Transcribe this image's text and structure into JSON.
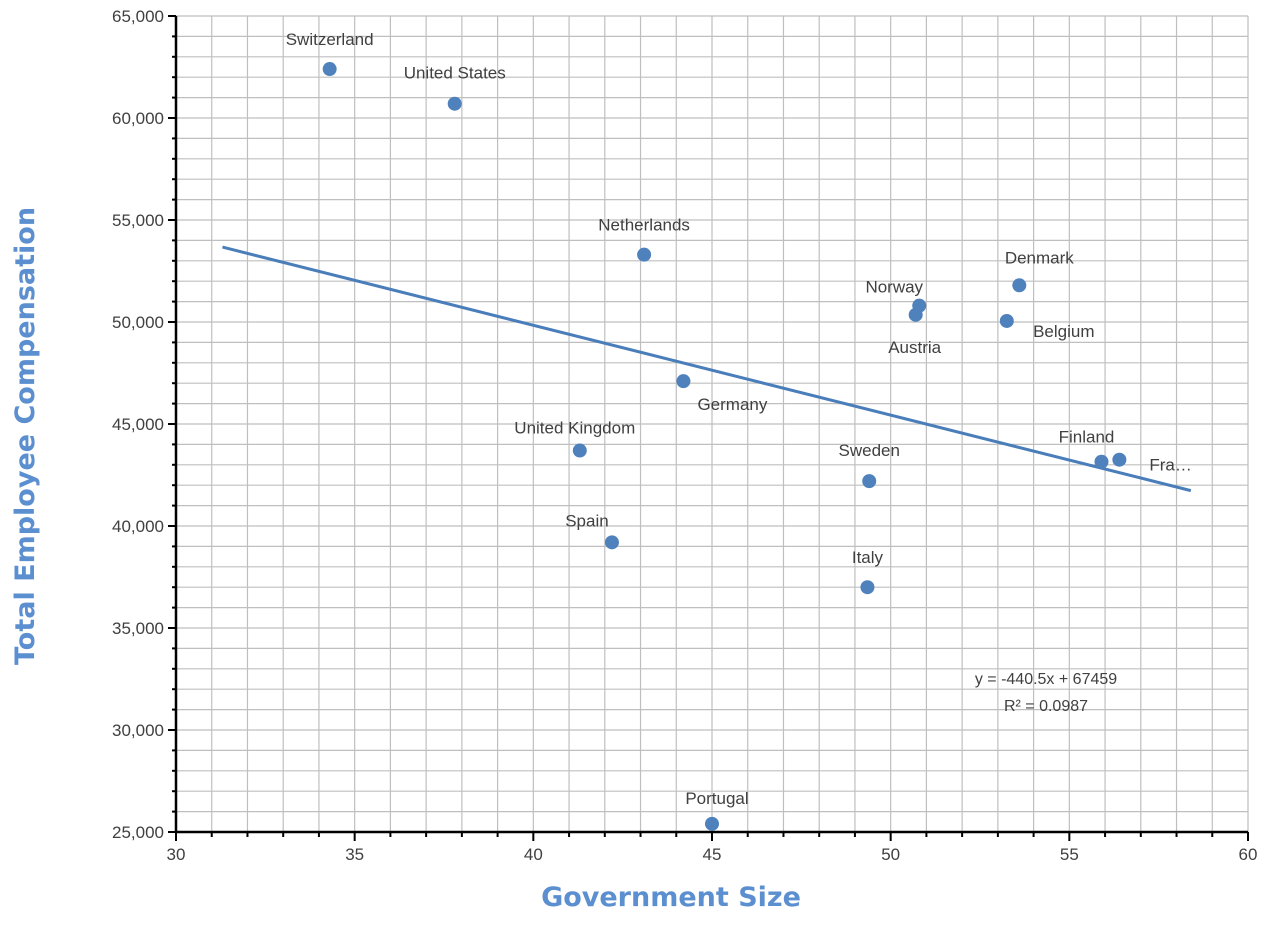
{
  "chart_data": {
    "type": "scatter",
    "xlabel": "Government Size",
    "ylabel": "Total Employee Compensation",
    "xlim": [
      30,
      60
    ],
    "ylim": [
      25000,
      65000
    ],
    "x_ticks": [
      30,
      35,
      40,
      45,
      50,
      55,
      60
    ],
    "y_ticks": [
      25000,
      30000,
      35000,
      40000,
      45000,
      50000,
      55000,
      60000,
      65000
    ],
    "y_tick_labels": [
      "25,000",
      "30,000",
      "35,000",
      "40,000",
      "45,000",
      "50,000",
      "55,000",
      "60,000",
      "65,000"
    ],
    "grid": true,
    "legend": "none",
    "series": [
      {
        "points": [
          {
            "label": "Switzerland",
            "x": 34.3,
            "y": 62400
          },
          {
            "label": "United States",
            "x": 37.8,
            "y": 60700
          },
          {
            "label": "Netherlands",
            "x": 43.1,
            "y": 53300
          },
          {
            "label": "Norway",
            "x": 50.8,
            "y": 50800
          },
          {
            "label": "Austria",
            "x": 50.7,
            "y": 50350
          },
          {
            "label": "Denmark",
            "x": 53.6,
            "y": 51800
          },
          {
            "label": "Belgium",
            "x": 53.25,
            "y": 50050
          },
          {
            "label": "Germany",
            "x": 44.2,
            "y": 47100
          },
          {
            "label": "United Kingdom",
            "x": 41.3,
            "y": 43700
          },
          {
            "label": "Sweden",
            "x": 49.4,
            "y": 42200
          },
          {
            "label": "Finland",
            "x": 55.9,
            "y": 43150
          },
          {
            "label": "Fra…",
            "x": 56.4,
            "y": 43250
          },
          {
            "label": "Spain",
            "x": 42.2,
            "y": 39200
          },
          {
            "label": "Italy",
            "x": 49.35,
            "y": 37000
          },
          {
            "label": "Portugal",
            "x": 45.0,
            "y": 25400
          }
        ]
      }
    ],
    "trendline": {
      "type": "linear",
      "slope": -440.5,
      "intercept": 67459,
      "x_range": [
        31.3,
        58.4
      ],
      "equation_text": "y = -440.5x + 67459",
      "r2_text": "R² = 0.0987"
    },
    "colors": {
      "point": "#4f81bd",
      "trendline": "#4a7ebb",
      "axis_title": "#5b8fcf",
      "grid": "#bfbfbf",
      "axis": "#000000"
    }
  }
}
